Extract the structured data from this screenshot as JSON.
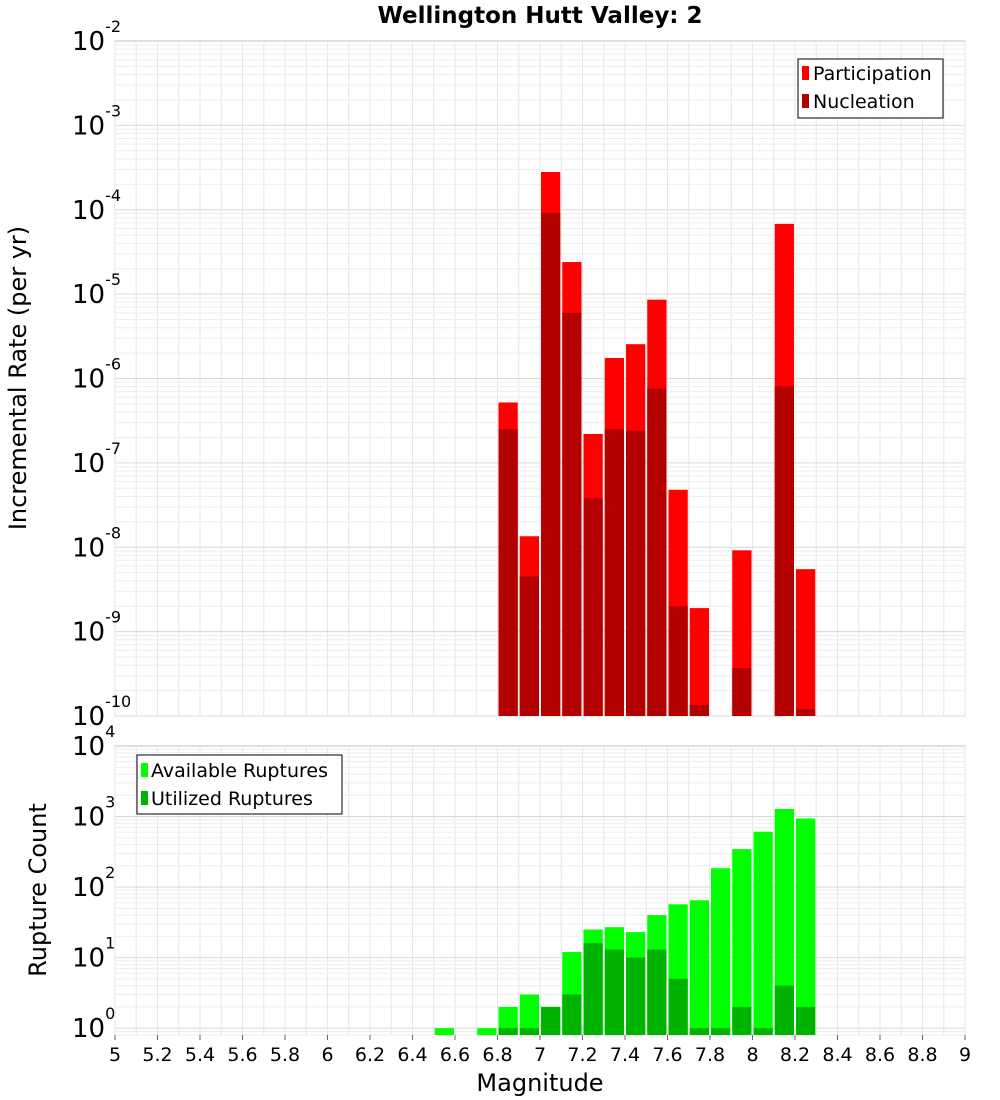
{
  "chart_data": [
    {
      "type": "bar",
      "title": "Wellington Hutt Valley: 2",
      "xlabel": "",
      "ylabel": "Incremental Rate (per yr)",
      "y_scale": "log",
      "ylim": [
        1e-10,
        0.01
      ],
      "y_tick_exponents": [
        "-10",
        "-9",
        "-8",
        "-7",
        "-6",
        "-5",
        "-4",
        "-3",
        "-2"
      ],
      "y_tick_base": "10",
      "xlim": [
        5,
        9
      ],
      "grid": true,
      "legend_position": "top-right",
      "legend": [
        "Participation",
        "Nucleation"
      ],
      "series": [
        {
          "name": "Participation",
          "color": "#ff0000",
          "x": [
            6.85,
            6.95,
            7.05,
            7.15,
            7.25,
            7.35,
            7.45,
            7.55,
            7.65,
            7.75,
            7.95,
            8.15,
            8.25
          ],
          "values": [
            5.2e-07,
            1.35e-08,
            0.00028,
            2.4e-05,
            2.2e-07,
            1.75e-06,
            2.55e-06,
            8.6e-06,
            4.8e-08,
            1.9e-09,
            9.2e-09,
            6.8e-05,
            5.5e-09
          ]
        },
        {
          "name": "Nucleation",
          "color": "#b30000",
          "x": [
            6.85,
            6.95,
            7.05,
            7.15,
            7.25,
            7.35,
            7.45,
            7.55,
            7.65,
            7.75,
            7.95,
            8.15,
            8.25
          ],
          "values": [
            2.5e-07,
            4.5e-09,
            9.2e-05,
            6e-06,
            3.8e-08,
            2.5e-07,
            2.4e-07,
            7.6e-07,
            2e-09,
            1.35e-10,
            3.7e-10,
            8.1e-07,
            1.2e-10
          ]
        }
      ]
    },
    {
      "type": "bar",
      "title": "",
      "xlabel": "Magnitude",
      "ylabel": "Rupture Count",
      "y_scale": "log",
      "ylim": [
        0.8,
        10000
      ],
      "y_tick_exponents": [
        "0",
        "1",
        "2",
        "3",
        "4"
      ],
      "y_tick_base": "10",
      "xlim": [
        5,
        9
      ],
      "x_ticks": [
        "5",
        "5.2",
        "5.4",
        "5.6",
        "5.8",
        "6",
        "6.2",
        "6.4",
        "6.6",
        "6.8",
        "7",
        "7.2",
        "7.4",
        "7.6",
        "7.8",
        "8",
        "8.2",
        "8.4",
        "8.6",
        "8.8",
        "9"
      ],
      "grid": true,
      "legend_position": "top-left",
      "legend": [
        "Available Ruptures",
        "Utilized Ruptures"
      ],
      "series": [
        {
          "name": "Available Ruptures",
          "color": "#00ff00",
          "x": [
            6.55,
            6.75,
            6.85,
            6.95,
            7.05,
            7.15,
            7.25,
            7.35,
            7.45,
            7.55,
            7.65,
            7.75,
            7.85,
            7.95,
            8.05,
            8.15,
            8.25
          ],
          "values": [
            1,
            1,
            2,
            3,
            2,
            12,
            25,
            27,
            23,
            40,
            57,
            65,
            185,
            345,
            610,
            1280,
            940
          ]
        },
        {
          "name": "Utilized Ruptures",
          "color": "#00b300",
          "x": [
            6.85,
            6.95,
            7.05,
            7.15,
            7.25,
            7.35,
            7.45,
            7.55,
            7.65,
            7.75,
            7.85,
            7.95,
            8.05,
            8.15,
            8.25
          ],
          "values": [
            1,
            1,
            2,
            3,
            16,
            13,
            10,
            13,
            5,
            1,
            1,
            2,
            1,
            4,
            2
          ]
        }
      ]
    }
  ]
}
